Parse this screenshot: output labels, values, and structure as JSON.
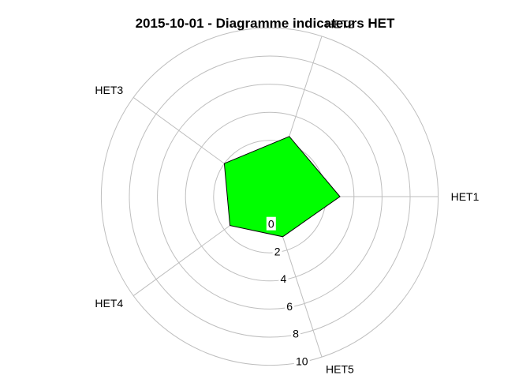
{
  "chart_data": {
    "type": "radar",
    "title": "2015-10-01 - Diagramme indicateurs HET",
    "axes": [
      "HET1",
      "HET2",
      "HET3",
      "HET4",
      "HET5"
    ],
    "radial_ticks": [
      "0",
      "2",
      "4",
      "6",
      "8",
      "10"
    ],
    "rlim": [
      -2,
      10
    ],
    "values": [
      3.0,
      2.5,
      2.0,
      1.5,
      1.0
    ],
    "fill_color": "#00ff00",
    "outline_color": "#000000",
    "grid": true
  }
}
